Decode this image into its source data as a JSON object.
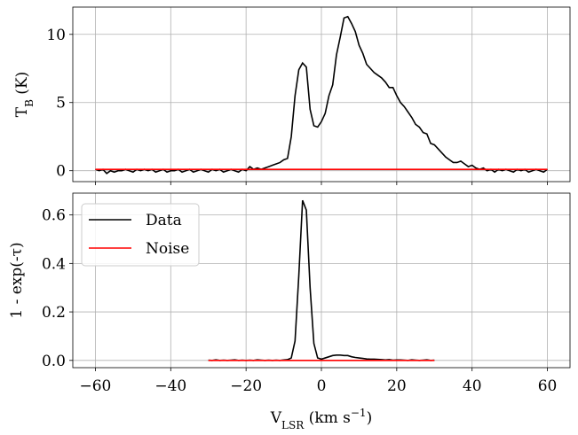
{
  "chart_data": [
    {
      "type": "line",
      "ylabel": "T_B (K)",
      "xlim": [
        -66,
        66
      ],
      "xticks": [
        -60,
        -40,
        -20,
        0,
        20,
        40,
        60
      ],
      "ylim": [
        -0.8,
        12
      ],
      "yticks": [
        0,
        5,
        10
      ],
      "grid": true,
      "x": [
        -60,
        -59,
        -58,
        -57,
        -56,
        -55,
        -54,
        -53,
        -52,
        -51,
        -50,
        -49,
        -48,
        -47,
        -46,
        -45,
        -44,
        -43,
        -42,
        -41,
        -40,
        -39,
        -38,
        -37,
        -36,
        -35,
        -34,
        -33,
        -32,
        -31,
        -30,
        -29,
        -28,
        -27,
        -26,
        -25,
        -24,
        -23,
        -22,
        -21,
        -20,
        -19,
        -18,
        -17,
        -16,
        -15,
        -14,
        -13,
        -12,
        -11,
        -10,
        -9,
        -8,
        -7,
        -6,
        -5,
        -4,
        -3,
        -2,
        -1,
        0,
        1,
        2,
        3,
        4,
        5,
        6,
        7,
        8,
        9,
        10,
        11,
        12,
        13,
        14,
        15,
        16,
        17,
        18,
        19,
        20,
        21,
        22,
        23,
        24,
        25,
        26,
        27,
        28,
        29,
        30,
        31,
        32,
        33,
        34,
        35,
        36,
        37,
        38,
        39,
        40,
        41,
        42,
        43,
        44,
        45,
        46,
        47,
        48,
        49,
        50,
        51,
        52,
        53,
        54,
        55,
        56,
        57,
        58,
        59,
        60
      ],
      "series": [
        {
          "name": "Data",
          "color": "#000000",
          "values": [
            0.1,
            0.0,
            0.1,
            -0.2,
            0.0,
            -0.1,
            0.0,
            0.0,
            0.1,
            0.0,
            -0.1,
            0.1,
            0.0,
            0.1,
            0.0,
            0.1,
            -0.1,
            0.0,
            0.1,
            -0.1,
            0.0,
            0.0,
            0.1,
            -0.1,
            0.0,
            0.1,
            -0.1,
            0.0,
            0.1,
            0.0,
            -0.1,
            0.1,
            0.0,
            0.1,
            -0.1,
            0.0,
            0.1,
            0.0,
            -0.1,
            0.1,
            0.0,
            0.3,
            0.1,
            0.2,
            0.1,
            0.2,
            0.3,
            0.4,
            0.5,
            0.6,
            0.8,
            0.9,
            2.5,
            5.5,
            7.4,
            7.9,
            7.6,
            4.5,
            3.3,
            3.2,
            3.6,
            4.2,
            5.5,
            6.3,
            8.5,
            9.8,
            11.2,
            11.3,
            10.8,
            10.2,
            9.2,
            8.6,
            7.8,
            7.5,
            7.2,
            7.0,
            6.8,
            6.5,
            6.1,
            6.1,
            5.5,
            5.0,
            4.7,
            4.3,
            3.9,
            3.4,
            3.2,
            2.8,
            2.7,
            2.0,
            1.9,
            1.6,
            1.3,
            1.0,
            0.8,
            0.6,
            0.6,
            0.7,
            0.5,
            0.3,
            0.4,
            0.2,
            0.1,
            0.2,
            0.0,
            0.1,
            -0.1,
            0.1,
            0.0,
            0.1,
            0.0,
            -0.1,
            0.1,
            0.0,
            0.1,
            -0.1,
            0.0,
            0.1,
            0.0,
            -0.1,
            0.1
          ]
        },
        {
          "name": "Noise",
          "color": "#ff0000",
          "values": [
            0.1,
            0.1,
            0.1,
            0.1,
            0.1,
            0.1,
            0.1,
            0.1,
            0.1,
            0.1,
            0.1,
            0.1,
            0.1,
            0.1,
            0.1,
            0.1,
            0.1,
            0.1,
            0.1,
            0.1,
            0.1,
            0.1,
            0.1,
            0.1,
            0.1,
            0.1,
            0.1,
            0.1,
            0.1,
            0.1,
            0.1,
            0.1,
            0.1,
            0.1,
            0.1,
            0.1,
            0.1,
            0.1,
            0.1,
            0.1,
            0.1,
            0.1,
            0.1,
            0.1,
            0.1,
            0.1,
            0.1,
            0.1,
            0.1,
            0.1,
            0.1,
            0.1,
            0.1,
            0.1,
            0.1,
            0.1,
            0.1,
            0.1,
            0.1,
            0.1,
            0.1,
            0.1,
            0.1,
            0.1,
            0.1,
            0.1,
            0.1,
            0.1,
            0.1,
            0.1,
            0.1,
            0.1,
            0.1,
            0.1,
            0.1,
            0.1,
            0.1,
            0.1,
            0.1,
            0.1,
            0.1,
            0.1,
            0.1,
            0.1,
            0.1,
            0.1,
            0.1,
            0.1,
            0.1,
            0.1,
            0.1,
            0.1,
            0.1,
            0.1,
            0.1,
            0.1,
            0.1,
            0.1,
            0.1,
            0.1,
            0.1,
            0.1,
            0.1,
            0.1,
            0.1,
            0.1,
            0.1,
            0.1,
            0.1,
            0.1,
            0.1,
            0.1,
            0.1,
            0.1,
            0.1,
            0.1,
            0.1,
            0.1,
            0.1,
            0.1,
            0.1
          ]
        }
      ]
    },
    {
      "type": "line",
      "ylabel": "1 - exp(-τ)",
      "xlabel": "V_LSR (km s^−1)",
      "xlim": [
        -66,
        66
      ],
      "xticks": [
        {
          "value": -60,
          "label": "−60"
        },
        {
          "value": -40,
          "label": "−40"
        },
        {
          "value": -20,
          "label": "−20"
        },
        0,
        20,
        40,
        60
      ],
      "ylim": [
        -0.03,
        0.69
      ],
      "yticks": [
        {
          "value": 0,
          "label": "0.0"
        },
        0.2,
        0.4,
        0.6
      ],
      "grid": true,
      "legend": "upper left",
      "x": [
        -30,
        -29,
        -28,
        -27,
        -26,
        -25,
        -24,
        -23,
        -22,
        -21,
        -20,
        -19,
        -18,
        -17,
        -16,
        -15,
        -14,
        -13,
        -12,
        -11,
        -10,
        -9,
        -8,
        -7,
        -6,
        -5,
        -4,
        -3,
        -2,
        -1,
        0,
        1,
        2,
        3,
        4,
        5,
        6,
        7,
        8,
        9,
        10,
        11,
        12,
        13,
        14,
        15,
        16,
        17,
        18,
        19,
        20,
        21,
        22,
        23,
        24,
        25,
        26,
        27,
        28,
        29,
        30
      ],
      "series": [
        {
          "name": "Data",
          "color": "#000000",
          "values": [
            0.001,
            0.0,
            0.002,
            0.0,
            0.001,
            0.0,
            0.001,
            0.002,
            0.0,
            0.001,
            0.0,
            0.001,
            0.0,
            0.002,
            0.001,
            0.0,
            0.001,
            0.0,
            0.001,
            0.0,
            0.002,
            0.003,
            0.01,
            0.08,
            0.35,
            0.66,
            0.62,
            0.3,
            0.07,
            0.01,
            0.005,
            0.01,
            0.015,
            0.02,
            0.022,
            0.022,
            0.02,
            0.02,
            0.015,
            0.012,
            0.01,
            0.008,
            0.006,
            0.005,
            0.005,
            0.004,
            0.003,
            0.002,
            0.003,
            0.001,
            0.002,
            0.002,
            0.001,
            0.0,
            0.002,
            0.001,
            0.0,
            0.001,
            0.002,
            0.0,
            0.001
          ]
        },
        {
          "name": "Noise",
          "color": "#ff0000",
          "values": [
            0,
            0,
            0,
            0,
            0,
            0,
            0,
            0,
            0,
            0,
            0,
            0,
            0,
            0,
            0,
            0,
            0,
            0,
            0,
            0,
            0,
            0,
            0,
            0,
            0,
            0,
            0,
            0,
            0,
            0,
            0,
            0,
            0,
            0,
            0,
            0,
            0,
            0,
            0,
            0,
            0,
            0,
            0,
            0,
            0,
            0,
            0,
            0,
            0,
            0,
            0,
            0,
            0,
            0,
            0,
            0,
            0,
            0,
            0,
            0,
            0
          ]
        }
      ]
    }
  ]
}
